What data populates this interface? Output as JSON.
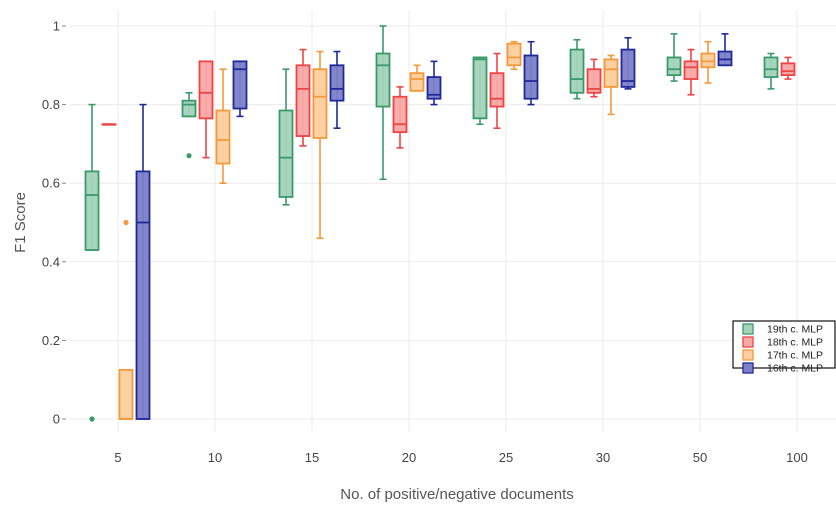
{
  "chart_data": {
    "type": "box",
    "xlabel": "No. of positive/negative documents",
    "ylabel": "F1 Score",
    "categories": [
      "5",
      "10",
      "15",
      "20",
      "25",
      "30",
      "50",
      "100"
    ],
    "y_ticks": [
      "0",
      "0.2",
      "0.4",
      "0.6",
      "0.8",
      "1"
    ],
    "ylim": [
      0,
      1
    ],
    "grid": true,
    "legend_position": "right",
    "series": [
      {
        "name": "19th c. MLP",
        "color": "#3a9a6a",
        "fill": "#a3d3bb",
        "boxes": [
          {
            "min": 0.43,
            "q1": 0.43,
            "median": 0.57,
            "q3": 0.63,
            "max": 0.8,
            "outliers": [
              0.0
            ]
          },
          {
            "min": 0.77,
            "q1": 0.77,
            "median": 0.8,
            "q3": 0.81,
            "max": 0.83,
            "outliers": [
              0.67
            ]
          },
          {
            "min": 0.545,
            "q1": 0.565,
            "median": 0.665,
            "q3": 0.785,
            "max": 0.89,
            "outliers": []
          },
          {
            "min": 0.61,
            "q1": 0.795,
            "median": 0.9,
            "q3": 0.93,
            "max": 1.0,
            "outliers": []
          },
          {
            "min": 0.75,
            "q1": 0.765,
            "median": 0.915,
            "q3": 0.92,
            "max": 0.92,
            "outliers": []
          },
          {
            "min": 0.815,
            "q1": 0.83,
            "median": 0.865,
            "q3": 0.94,
            "max": 0.965,
            "outliers": []
          },
          {
            "min": 0.86,
            "q1": 0.875,
            "median": 0.89,
            "q3": 0.92,
            "max": 0.98,
            "outliers": []
          },
          {
            "min": 0.84,
            "q1": 0.87,
            "median": 0.89,
            "q3": 0.92,
            "max": 0.93,
            "outliers": []
          }
        ]
      },
      {
        "name": "18th c. MLP",
        "color": "#ef4444",
        "fill": "#f9a8a8",
        "boxes": [
          {
            "min": 0.75,
            "q1": 0.75,
            "median": 0.75,
            "q3": 0.75,
            "max": 0.75,
            "outliers": []
          },
          {
            "min": 0.665,
            "q1": 0.765,
            "median": 0.83,
            "q3": 0.91,
            "max": 0.91,
            "outliers": []
          },
          {
            "min": 0.695,
            "q1": 0.72,
            "median": 0.84,
            "q3": 0.9,
            "max": 0.94,
            "outliers": []
          },
          {
            "min": 0.69,
            "q1": 0.73,
            "median": 0.75,
            "q3": 0.82,
            "max": 0.845,
            "outliers": []
          },
          {
            "min": 0.74,
            "q1": 0.795,
            "median": 0.815,
            "q3": 0.88,
            "max": 0.93,
            "outliers": []
          },
          {
            "min": 0.82,
            "q1": 0.83,
            "median": 0.84,
            "q3": 0.89,
            "max": 0.915,
            "outliers": []
          },
          {
            "min": 0.825,
            "q1": 0.865,
            "median": 0.895,
            "q3": 0.91,
            "max": 0.94,
            "outliers": []
          },
          {
            "min": 0.865,
            "q1": 0.875,
            "median": 0.885,
            "q3": 0.905,
            "max": 0.92,
            "outliers": []
          }
        ]
      },
      {
        "name": "17th c. MLP",
        "color": "#f59a3a",
        "fill": "#fcd0a0",
        "boxes": [
          {
            "min": 0.0,
            "q1": 0.0,
            "median": 0.0,
            "q3": 0.125,
            "max": 0.125,
            "outliers": [
              0.5
            ]
          },
          {
            "min": 0.6,
            "q1": 0.65,
            "median": 0.71,
            "q3": 0.785,
            "max": 0.89,
            "outliers": []
          },
          {
            "min": 0.46,
            "q1": 0.715,
            "median": 0.82,
            "q3": 0.89,
            "max": 0.935,
            "outliers": []
          },
          {
            "min": 0.835,
            "q1": 0.835,
            "median": 0.865,
            "q3": 0.88,
            "max": 0.9,
            "outliers": []
          },
          {
            "min": 0.89,
            "q1": 0.9,
            "median": 0.92,
            "q3": 0.955,
            "max": 0.96,
            "outliers": []
          },
          {
            "min": 0.775,
            "q1": 0.845,
            "median": 0.89,
            "q3": 0.915,
            "max": 0.925,
            "outliers": []
          },
          {
            "min": 0.855,
            "q1": 0.895,
            "median": 0.91,
            "q3": 0.93,
            "max": 0.96,
            "outliers": []
          }
        ]
      },
      {
        "name": "16th c. MLP",
        "color": "#1f2a9a",
        "fill": "#7d80c8",
        "boxes": [
          {
            "min": 0.0,
            "q1": 0.0,
            "median": 0.5,
            "q3": 0.63,
            "max": 0.8,
            "outliers": []
          },
          {
            "min": 0.77,
            "q1": 0.79,
            "median": 0.89,
            "q3": 0.91,
            "max": 0.91,
            "outliers": []
          },
          {
            "min": 0.74,
            "q1": 0.81,
            "median": 0.84,
            "q3": 0.9,
            "max": 0.935,
            "outliers": []
          },
          {
            "min": 0.8,
            "q1": 0.815,
            "median": 0.825,
            "q3": 0.87,
            "max": 0.91,
            "outliers": []
          },
          {
            "min": 0.8,
            "q1": 0.815,
            "median": 0.86,
            "q3": 0.925,
            "max": 0.96,
            "outliers": []
          },
          {
            "min": 0.84,
            "q1": 0.845,
            "median": 0.86,
            "q3": 0.94,
            "max": 0.97,
            "outliers": []
          },
          {
            "min": 0.9,
            "q1": 0.9,
            "median": 0.915,
            "q3": 0.935,
            "max": 0.98,
            "outliers": []
          }
        ]
      }
    ]
  }
}
